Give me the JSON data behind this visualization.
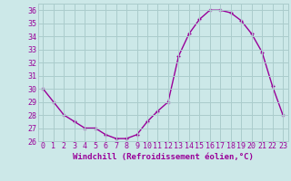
{
  "x": [
    0,
    1,
    2,
    3,
    4,
    5,
    6,
    7,
    8,
    9,
    10,
    11,
    12,
    13,
    14,
    15,
    16,
    17,
    18,
    19,
    20,
    21,
    22,
    23
  ],
  "y": [
    30.0,
    29.0,
    28.0,
    27.5,
    27.0,
    27.0,
    26.5,
    26.2,
    26.2,
    26.5,
    27.5,
    28.3,
    29.0,
    32.5,
    34.2,
    35.3,
    36.0,
    36.0,
    35.8,
    35.2,
    34.2,
    32.8,
    30.2,
    28.0
  ],
  "line_color": "#990099",
  "marker": "+",
  "bg_color": "#cce8e8",
  "grid_color": "#aacccc",
  "xlabel": "Windchill (Refroidissement éolien,°C)",
  "ylim": [
    26,
    36.5
  ],
  "xlim": [
    -0.5,
    23.5
  ],
  "yticks": [
    26,
    27,
    28,
    29,
    30,
    31,
    32,
    33,
    34,
    35,
    36
  ],
  "xticks": [
    0,
    1,
    2,
    3,
    4,
    5,
    6,
    7,
    8,
    9,
    10,
    11,
    12,
    13,
    14,
    15,
    16,
    17,
    18,
    19,
    20,
    21,
    22,
    23
  ],
  "xlabel_fontsize": 6.5,
  "tick_fontsize": 6.0,
  "line_width": 1.0,
  "marker_size": 3.5
}
